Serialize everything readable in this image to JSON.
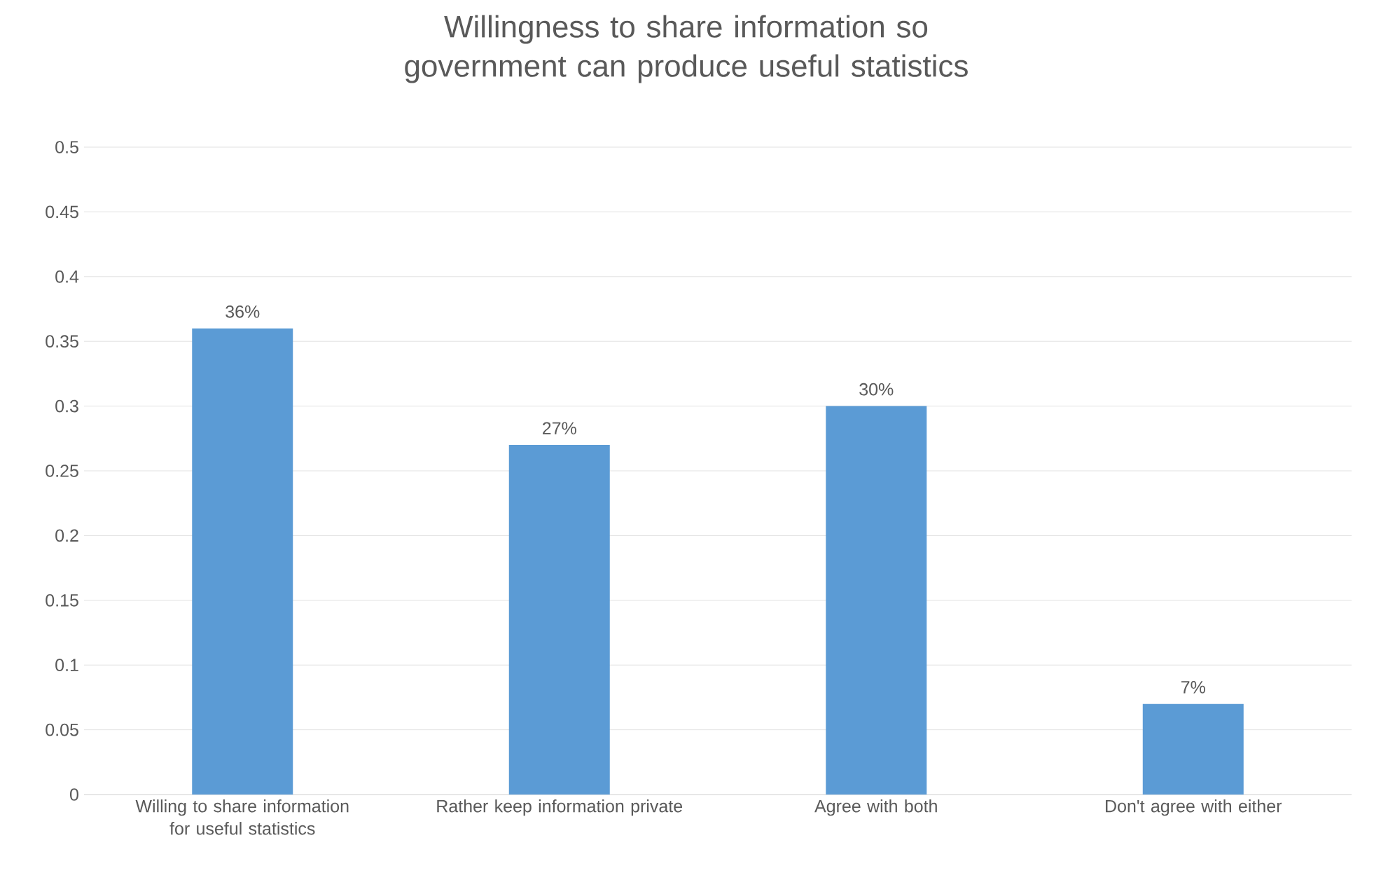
{
  "chart_data": {
    "type": "bar",
    "title": "Willingness to share information so government can produce useful statistics",
    "categories": [
      "Willing to share information for useful statistics",
      "Rather keep information private",
      "Agree with both",
      "Don't agree with either"
    ],
    "values": [
      0.36,
      0.27,
      0.3,
      0.07
    ],
    "value_labels": [
      "36%",
      "27%",
      "30%",
      "7%"
    ],
    "color": "#5b9bd5",
    "ylim": [
      0,
      0.5
    ],
    "yticks": [
      0,
      0.05,
      0.1,
      0.15,
      0.2,
      0.25,
      0.3,
      0.35,
      0.4,
      0.45,
      0.5
    ],
    "grid": "y"
  }
}
